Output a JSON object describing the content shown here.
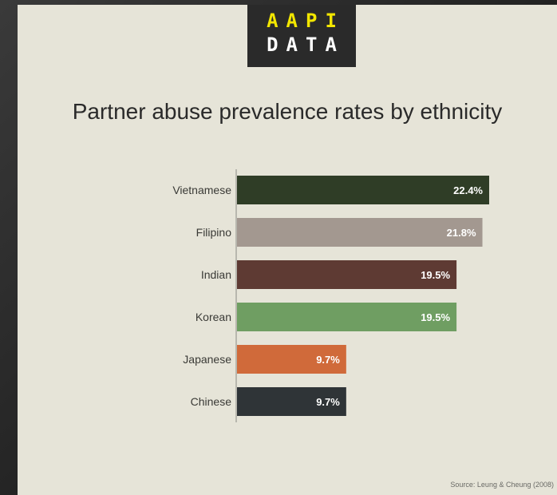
{
  "logo": {
    "line1": "AAPI",
    "line2": "DATA"
  },
  "chart_data": {
    "type": "bar",
    "orientation": "horizontal",
    "title": "Partner abuse prevalence rates by ethnicity",
    "categories": [
      "Vietnamese",
      "Filipino",
      "Indian",
      "Korean",
      "Japanese",
      "Chinese"
    ],
    "values": [
      22.4,
      21.8,
      19.5,
      19.5,
      9.7,
      9.7
    ],
    "labels": [
      "22.4%",
      "21.8%",
      "19.5%",
      "19.5%",
      "9.7%",
      "9.7%"
    ],
    "colors": [
      "#2f3d26",
      "#a39890",
      "#5e3a33",
      "#6f9e62",
      "#d06a3a",
      "#2f3437"
    ],
    "xlim": [
      0,
      22.4
    ],
    "grid": false,
    "legend": "none"
  },
  "source": "Source: Leung & Cheung (2008)"
}
